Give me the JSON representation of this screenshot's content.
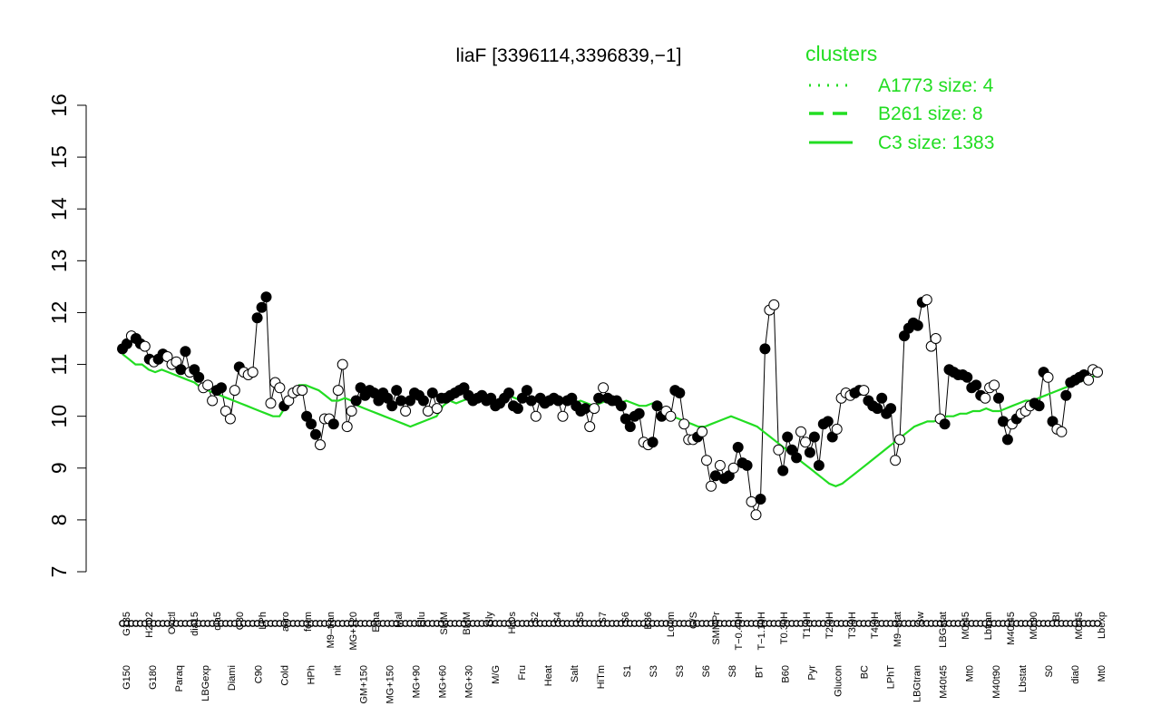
{
  "chart_data": {
    "type": "line",
    "title": "liaF [3396114,3396839,−1]",
    "xlabel": "",
    "ylabel": "",
    "ylim": [
      7,
      16
    ],
    "y_ticks": [
      7,
      8,
      9,
      10,
      11,
      12,
      13,
      14,
      15,
      16
    ],
    "grid": false,
    "legend": {
      "placement": "top-right",
      "title": "clusters",
      "entries": [
        {
          "label": "A1773 size: 4",
          "style": "dotted"
        },
        {
          "label": "B261 size: 8",
          "style": "dashed"
        },
        {
          "label": "C3 size: 1383",
          "style": "solid"
        }
      ]
    },
    "colors": {
      "line": "#22dd22",
      "marker_edge": "#000000",
      "marker_open": "#ffffff",
      "marker_filled": "#000000"
    },
    "x_labels_upper": [
      "G135",
      "H2O2",
      "Oxctl",
      "dia15",
      "dia5",
      "C30",
      "LPh",
      "aero",
      "ferm",
      "M9–tran",
      "MG+120",
      "Etha",
      "Mal",
      "Glu",
      "SMM",
      "BMM",
      "Gly",
      "HiOs",
      "S2",
      "S4",
      "S5",
      "S7",
      "S6",
      "B36",
      "LoTm",
      "G/S",
      "SMMPr",
      "T−0.40H",
      "T−1.10H",
      "T0.30H",
      "T1.0H",
      "T2.0H",
      "T3.0H",
      "T4.0H",
      "M9–stat",
      "Sw",
      "LBGstat",
      "M0t45",
      "Lbtran",
      "M40t45",
      "M0t90",
      "BI",
      "M0t45",
      "Lbexp"
    ],
    "x_labels_lower": [
      "G150",
      "G180",
      "Paraq",
      "LBGexp",
      "Diami",
      "C90",
      "Cold",
      "HPh",
      "nit",
      "GM+150",
      "MG+150",
      "MG+90",
      "MG+60",
      "MG+30",
      "M/G",
      "Fru",
      "Heat",
      "Salt",
      "HiTm",
      "S1",
      "S3",
      "S3",
      "S6",
      "S8",
      "BT",
      "B60",
      "Pyr",
      "Glucon",
      "BC",
      "LPhT",
      "LBGtran",
      "M40t45",
      "Mt0",
      "M40t90",
      "Lbstat",
      "S0",
      "dia0",
      "Mt0"
    ],
    "series": [
      {
        "values": [
          11.3,
          11.4,
          11.55,
          11.5,
          11.4,
          11.35,
          11.1,
          11.05,
          11.1,
          11.2,
          11.15,
          11.0,
          11.05,
          10.9,
          11.25,
          10.85,
          10.9,
          10.75,
          10.55,
          10.6,
          10.3,
          10.5,
          10.55,
          10.1,
          9.95,
          10.5,
          10.95,
          10.85,
          10.8,
          10.85,
          11.9,
          12.1,
          12.3,
          10.25,
          10.65,
          10.55,
          10.2,
          10.3,
          10.45,
          10.5,
          10.5,
          10.0,
          9.85,
          9.65,
          9.45,
          9.95,
          9.95,
          9.85,
          10.5,
          11.0,
          9.8,
          10.1,
          10.3,
          10.55,
          10.4,
          10.5,
          10.45,
          10.3,
          10.45,
          10.35,
          10.2,
          10.5,
          10.3,
          10.1,
          10.3,
          10.45,
          10.4,
          10.3,
          10.1,
          10.45,
          10.15,
          10.35,
          10.35,
          10.4,
          10.45,
          10.5,
          10.55,
          10.4,
          10.3,
          10.35,
          10.4,
          10.3,
          10.35,
          10.2,
          10.25,
          10.35,
          10.45,
          10.2,
          10.15,
          10.35,
          10.5,
          10.3,
          10.0,
          10.35,
          10.25,
          10.3,
          10.35,
          10.3,
          10.0,
          10.3,
          10.35,
          10.2,
          10.1,
          10.15,
          9.8,
          10.15,
          10.35,
          10.55,
          10.35,
          10.3,
          10.3,
          10.2,
          9.95,
          9.8,
          10.0,
          10.05,
          9.5,
          9.45,
          9.5,
          10.2,
          10.0,
          10.1,
          10.0,
          10.5,
          10.45,
          9.85,
          9.55,
          9.55,
          9.6,
          9.7,
          9.15,
          8.65,
          8.85,
          9.05,
          8.8,
          8.85,
          9.0,
          9.4,
          9.1,
          9.05,
          8.35,
          8.1,
          8.4,
          11.3,
          12.05,
          12.15,
          9.35,
          8.95,
          9.6,
          9.35,
          9.2,
          9.7,
          9.5,
          9.3,
          9.6,
          9.05,
          9.85,
          9.9,
          9.6,
          9.75,
          10.35,
          10.45,
          10.4,
          10.45,
          10.5,
          10.5,
          10.3,
          10.2,
          10.15,
          10.35,
          10.05,
          10.15,
          9.15,
          9.55,
          11.55,
          11.7,
          11.8,
          11.75,
          12.2,
          12.25,
          11.35,
          11.5,
          9.95,
          9.85,
          10.9,
          10.85,
          10.8,
          10.8,
          10.75,
          10.55,
          10.6,
          10.4,
          10.35,
          10.55,
          10.6,
          10.35,
          9.9,
          9.55,
          9.85,
          9.95,
          10.05,
          10.1,
          10.2,
          10.25,
          10.2,
          10.85,
          10.75,
          9.9,
          9.75,
          9.7,
          10.4,
          10.65,
          10.7,
          10.75,
          10.8,
          10.7,
          10.9,
          10.85
        ],
        "filled": [
          1,
          1,
          0,
          1,
          1,
          0,
          1,
          0,
          1,
          1,
          0,
          0,
          0,
          1,
          1,
          0,
          1,
          1,
          0,
          0,
          0,
          1,
          1,
          0,
          0,
          0,
          1,
          0,
          0,
          0,
          1,
          1,
          1,
          0,
          0,
          0,
          1,
          0,
          0,
          0,
          0,
          1,
          1,
          1,
          0,
          0,
          0,
          1,
          0,
          0,
          0,
          0,
          1,
          1,
          1,
          1,
          1,
          1,
          1,
          1,
          1,
          1,
          1,
          0,
          1,
          1,
          1,
          1,
          0,
          1,
          0,
          1,
          1,
          1,
          1,
          1,
          1,
          1,
          1,
          1,
          1,
          1,
          1,
          1,
          1,
          1,
          1,
          1,
          1,
          1,
          1,
          1,
          0,
          1,
          1,
          1,
          1,
          1,
          0,
          1,
          1,
          1,
          1,
          1,
          0,
          0,
          1,
          0,
          1,
          1,
          1,
          1,
          1,
          1,
          1,
          1,
          0,
          0,
          1,
          1,
          1,
          0,
          0,
          1,
          1,
          0,
          0,
          0,
          1,
          0,
          0,
          0,
          1,
          0,
          1,
          1,
          0,
          1,
          1,
          1,
          0,
          0,
          1,
          1,
          0,
          0,
          0,
          1,
          1,
          1,
          1,
          0,
          0,
          1,
          1,
          1,
          1,
          1,
          1,
          0,
          0,
          0,
          0,
          1,
          1,
          0,
          1,
          1,
          1,
          1,
          1,
          1,
          0,
          0,
          1,
          1,
          1,
          1,
          1,
          0,
          0,
          0,
          0,
          1,
          1,
          1,
          1,
          1,
          1,
          1,
          1,
          1,
          0,
          0,
          0,
          1,
          1,
          1,
          0,
          1,
          0,
          0,
          0,
          1,
          1,
          1,
          0,
          1,
          0,
          0,
          1,
          1,
          1,
          1,
          1
        ]
      },
      {
        "name": "C3 size: 1383",
        "style": "solid",
        "values": [
          11.2,
          11.1,
          11.0,
          11.0,
          10.9,
          10.85,
          10.9,
          10.85,
          10.8,
          10.75,
          10.7,
          10.65,
          10.55,
          10.5,
          10.45,
          10.4,
          10.35,
          10.3,
          10.25,
          10.2,
          10.15,
          10.1,
          10.05,
          10.0,
          10.0,
          10.2,
          10.4,
          10.6,
          10.6,
          10.55,
          10.5,
          10.4,
          10.3,
          10.3,
          10.35,
          10.3,
          10.2,
          10.15,
          10.1,
          10.05,
          10.0,
          9.95,
          9.9,
          9.85,
          9.8,
          9.85,
          9.9,
          9.95,
          10.0,
          10.2,
          10.3,
          10.25,
          10.3,
          10.35,
          10.4,
          10.35,
          10.3,
          10.3,
          10.35,
          10.4,
          10.35,
          10.3,
          10.3,
          10.35,
          10.3,
          10.25,
          10.3,
          10.35,
          10.3,
          10.25,
          10.3,
          10.25,
          10.2,
          10.25,
          10.3,
          10.3,
          10.25,
          10.3,
          10.25,
          10.2,
          10.2,
          10.25,
          10.2,
          10.1,
          10.0,
          9.95,
          9.9,
          9.85,
          9.8,
          9.8,
          9.85,
          9.9,
          9.95,
          10.0,
          9.95,
          9.9,
          9.85,
          9.8,
          9.7,
          9.6,
          9.5,
          9.4,
          9.3,
          9.2,
          9.1,
          9.0,
          8.9,
          8.8,
          8.7,
          8.65,
          8.7,
          8.8,
          8.9,
          9.0,
          9.1,
          9.2,
          9.3,
          9.4,
          9.5,
          9.6,
          9.7,
          9.8,
          9.85,
          9.9,
          9.9,
          9.95,
          10.0,
          10.0,
          10.05,
          10.05,
          10.1,
          10.1,
          10.15,
          10.1,
          10.1,
          10.15,
          10.2,
          10.25,
          10.3,
          10.3,
          10.35,
          10.4,
          10.45,
          10.5,
          10.55,
          10.6,
          10.65,
          10.7,
          10.75,
          10.8
        ]
      }
    ]
  }
}
